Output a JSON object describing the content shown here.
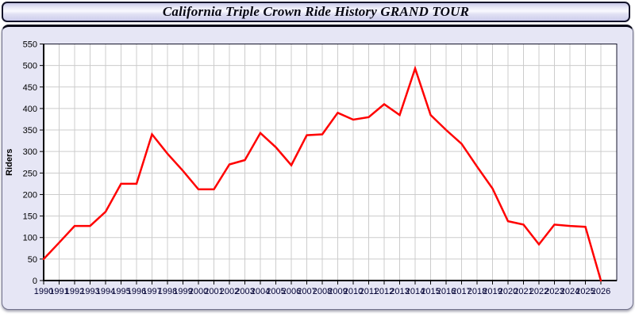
{
  "header": {
    "title": "California Triple Crown Ride History GRAND TOUR"
  },
  "chart_data": {
    "type": "line",
    "title": "California Triple Crown Ride History GRAND TOUR",
    "xlabel": "",
    "ylabel": "Riders",
    "x": [
      1990,
      1991,
      1992,
      1993,
      1994,
      1995,
      1996,
      1997,
      1998,
      1999,
      2000,
      2001,
      2002,
      2003,
      2004,
      2005,
      2006,
      2007,
      2008,
      2009,
      2010,
      2011,
      2012,
      2013,
      2014,
      2015,
      2016,
      2017,
      2018,
      2019,
      2020,
      2021,
      2022,
      2023,
      2024,
      2025,
      2026
    ],
    "series": [
      {
        "name": "Riders",
        "values": [
          50,
          88,
          127,
          127,
          160,
          225,
          225,
          340,
          295,
          255,
          212,
          212,
          270,
          280,
          343,
          310,
          268,
          338,
          340,
          390,
          374,
          380,
          410,
          385,
          493,
          385,
          350,
          318,
          265,
          214,
          138,
          130,
          84,
          130,
          127,
          125,
          0
        ]
      }
    ],
    "ylim": [
      0,
      550
    ],
    "ytick_step": 50,
    "grid": true,
    "legend_position": "none",
    "line_color": "#ff0000",
    "grid_color": "#cccccc",
    "plot_bg": "#ffffff",
    "panel_bg": "#e6e6f5",
    "plot_border_color": "#16162c",
    "x_label_color": "#000033",
    "y_label_color": "#000000"
  }
}
